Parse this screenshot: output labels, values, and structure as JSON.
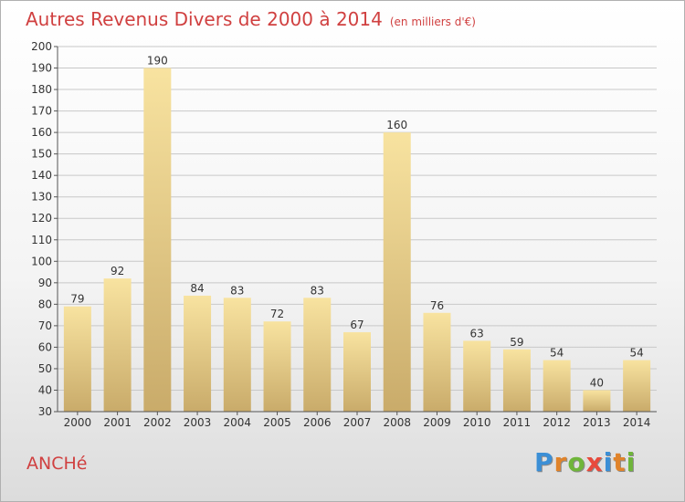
{
  "header": {
    "title": "Autres Revenus Divers de 2000 à 2014",
    "unit_note": "(en milliers d'€)"
  },
  "commune": "ANCHé",
  "logo": {
    "letters": [
      "P",
      "r",
      "o",
      "x",
      "i",
      "t",
      "i"
    ],
    "colors": [
      "#3b8fd6",
      "#e0832a",
      "#6fb53a",
      "#e84a3c",
      "#3b8fd6",
      "#e0832a",
      "#6fb53a"
    ]
  },
  "colors": {
    "bar_light": "#f8e3a0",
    "bar_dark": "#c9ab6a",
    "grid": "#c8c8c8",
    "title": "#d04040"
  },
  "chart_data": {
    "type": "bar",
    "title": "Autres Revenus Divers de 2000 à 2014",
    "subtitle": "(en milliers d'€)",
    "categories": [
      "2000",
      "2001",
      "2002",
      "2003",
      "2004",
      "2005",
      "2006",
      "2007",
      "2008",
      "2009",
      "2010",
      "2011",
      "2012",
      "2013",
      "2014"
    ],
    "values": [
      79,
      92,
      190,
      84,
      83,
      72,
      83,
      67,
      160,
      76,
      63,
      59,
      54,
      40,
      54
    ],
    "ylim": [
      30,
      200
    ],
    "ytick_step": 10,
    "grid": true,
    "legend": "none",
    "xlabel": "",
    "ylabel": ""
  }
}
